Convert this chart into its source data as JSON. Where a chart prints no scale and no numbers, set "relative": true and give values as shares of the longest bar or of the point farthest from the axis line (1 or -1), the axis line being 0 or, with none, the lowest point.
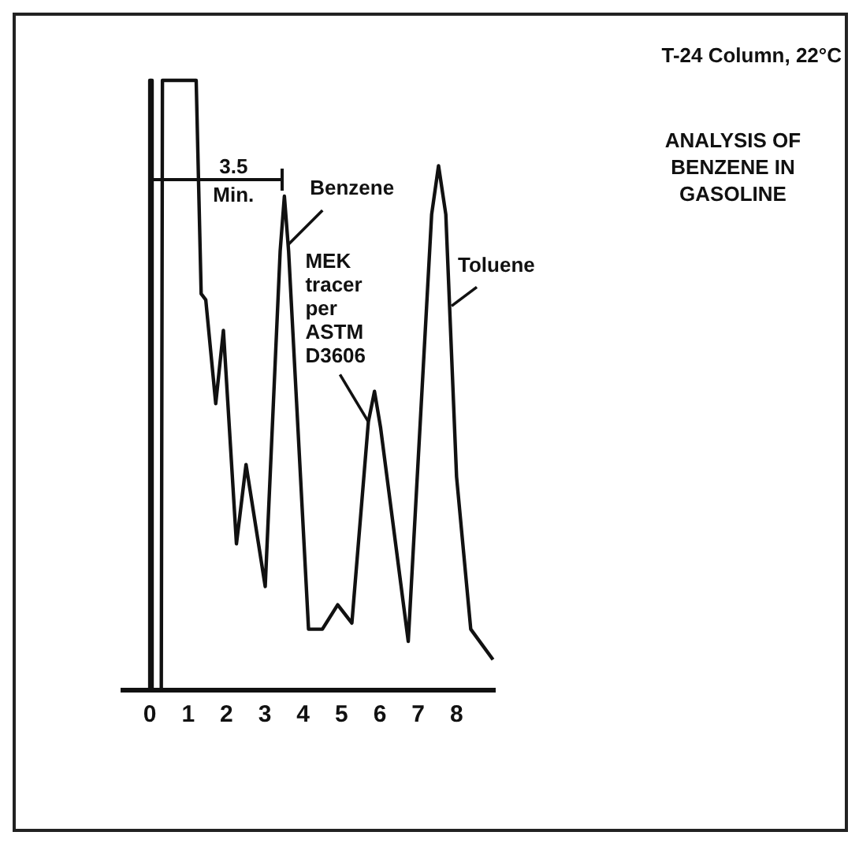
{
  "chart_data": {
    "type": "line",
    "title": "ANALYSIS OF BENZENE IN GASOLINE",
    "subtitle": "T-24 Column, 22°C",
    "relative": true,
    "xlim": [
      -0.7,
      9
    ],
    "xticks": [
      0,
      1,
      2,
      3,
      4,
      5,
      6,
      7,
      8
    ],
    "series": [
      {
        "color": "#111111",
        "x": [
          0,
          0,
          0.04,
          0.06,
          0.3,
          0.33,
          1.21,
          1.34,
          1.46,
          1.72,
          1.92,
          2.26,
          2.51,
          3.01,
          3.4,
          3.51,
          3.62,
          4.14,
          4.5,
          4.9,
          5.27,
          5.7,
          5.86,
          6.02,
          6.74,
          7.35,
          7.53,
          7.72,
          8.0,
          8.37,
          8.95
        ],
        "values": [
          0,
          1,
          1,
          0,
          0,
          1,
          1,
          0.65,
          0.64,
          0.47,
          0.59,
          0.24,
          0.37,
          0.17,
          0.72,
          0.81,
          0.72,
          0.1,
          0.1,
          0.14,
          0.11,
          0.44,
          0.49,
          0.43,
          0.08,
          0.78,
          0.86,
          0.78,
          0.35,
          0.1,
          0.05
        ]
      }
    ],
    "annotations": [
      "3.5 Min.",
      {
        "text": "Benzene",
        "x": 3.6,
        "y": 0.73
      },
      {
        "text": "MEK tracer per ASTM D3606",
        "x": 5.7,
        "y": 0.44
      },
      {
        "text": "Toluene",
        "x": 7.87,
        "y": 0.63
      }
    ],
    "grid": false,
    "legend": false,
    "marker": "none",
    "line_style": "solid"
  }
}
